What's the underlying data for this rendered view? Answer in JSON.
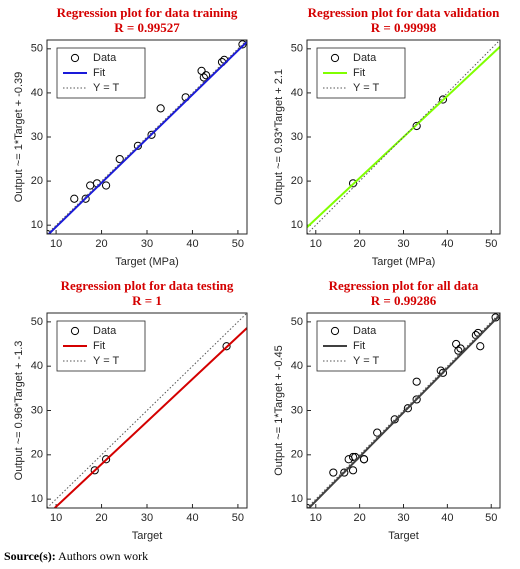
{
  "chart_data": [
    {
      "type": "scatter",
      "title": "Regression plot for data training",
      "subtitle": "R = 0.99527",
      "x_label": "Target (MPa)",
      "y_label": "Output ~= 1*Target + -0.39",
      "xlim": [
        8,
        52
      ],
      "ylim": [
        8,
        52
      ],
      "xticks": [
        10,
        20,
        30,
        40,
        50
      ],
      "yticks": [
        10,
        20,
        30,
        40,
        50
      ],
      "legend": "upper-left",
      "series": [
        {
          "name": "Data",
          "style": "circle",
          "color": "#000000",
          "x": [
            8,
            14,
            16.5,
            17.5,
            19,
            21,
            24,
            28,
            31,
            33,
            38.5,
            42,
            42.5,
            43,
            46.5,
            47,
            51
          ],
          "values": [
            8,
            16,
            16,
            19,
            19.5,
            19,
            25,
            28,
            30.5,
            36.5,
            39,
            45,
            43.5,
            44,
            47,
            47.5,
            51
          ]
        },
        {
          "name": "Fit",
          "style": "solid",
          "color": "#1a1ad9",
          "x": [
            8,
            52
          ],
          "values": [
            7.61,
            51.61
          ]
        },
        {
          "name": "Y = T",
          "style": "dotted",
          "color": "#555555",
          "x": [
            8,
            52
          ],
          "values": [
            8,
            52
          ]
        }
      ]
    },
    {
      "type": "scatter",
      "title": "Regression plot for data validation",
      "subtitle": "R = 0.99998",
      "x_label": "Target (MPa)",
      "y_label": "Output ~= 0.93*Target + 2.1",
      "xlim": [
        8,
        52
      ],
      "ylim": [
        8,
        52
      ],
      "xticks": [
        10,
        20,
        30,
        40,
        50
      ],
      "yticks": [
        10,
        20,
        30,
        40,
        50
      ],
      "legend": "upper-left",
      "series": [
        {
          "name": "Data",
          "style": "circle",
          "color": "#000000",
          "x": [
            18.5,
            33,
            39
          ],
          "values": [
            19.5,
            32.5,
            38.5
          ]
        },
        {
          "name": "Fit",
          "style": "solid",
          "color": "#80ff00",
          "x": [
            8,
            52
          ],
          "values": [
            9.54,
            50.46
          ]
        },
        {
          "name": "Y = T",
          "style": "dotted",
          "color": "#555555",
          "x": [
            8,
            52
          ],
          "values": [
            8,
            52
          ]
        }
      ]
    },
    {
      "type": "scatter",
      "title": "Regression plot for data testing",
      "subtitle": "R = 1",
      "x_label": "Target",
      "y_label": "Output ~= 0.96*Target + -1.3",
      "xlim": [
        8,
        52
      ],
      "ylim": [
        8,
        52
      ],
      "xticks": [
        10,
        20,
        30,
        40,
        50
      ],
      "yticks": [
        10,
        20,
        30,
        40,
        50
      ],
      "legend": "upper-left",
      "series": [
        {
          "name": "Data",
          "style": "circle",
          "color": "#000000",
          "x": [
            18.5,
            21,
            47.5
          ],
          "values": [
            16.5,
            19,
            44.5
          ]
        },
        {
          "name": "Fit",
          "style": "solid",
          "color": "#d40000",
          "x": [
            9.7,
            52
          ],
          "values": [
            8,
            48.62
          ]
        },
        {
          "name": "Y = T",
          "style": "dotted",
          "color": "#555555",
          "x": [
            8,
            52
          ],
          "values": [
            8,
            52
          ]
        }
      ]
    },
    {
      "type": "scatter",
      "title": "Regression plot for all data",
      "subtitle": "R = 0.99286",
      "x_label": "Target",
      "y_label": "Output ~= 1*Target + -0.45",
      "xlim": [
        8,
        52
      ],
      "ylim": [
        8,
        52
      ],
      "xticks": [
        10,
        20,
        30,
        40,
        50
      ],
      "yticks": [
        10,
        20,
        30,
        40,
        50
      ],
      "legend": "upper-left",
      "series": [
        {
          "name": "Data",
          "style": "circle",
          "color": "#000000",
          "x": [
            8,
            14,
            16.5,
            17.5,
            18.5,
            18.5,
            19,
            21,
            21,
            24,
            28,
            31,
            33,
            33,
            38.5,
            39,
            42,
            42.5,
            43,
            46.5,
            47,
            47.5,
            51
          ],
          "values": [
            8,
            16,
            16,
            19,
            19.5,
            16.5,
            19.5,
            19,
            19,
            25,
            28,
            30.5,
            36.5,
            32.5,
            39,
            38.5,
            45,
            43.5,
            44,
            47,
            47.5,
            44.5,
            51
          ]
        },
        {
          "name": "Fit",
          "style": "solid",
          "color": "#404040",
          "x": [
            8,
            52
          ],
          "values": [
            7.55,
            51.55
          ]
        },
        {
          "name": "Y = T",
          "style": "dotted",
          "color": "#555555",
          "x": [
            8,
            52
          ],
          "values": [
            8,
            52
          ]
        }
      ]
    }
  ],
  "source": {
    "label": "Source(s):",
    "text": "Authors own work"
  }
}
